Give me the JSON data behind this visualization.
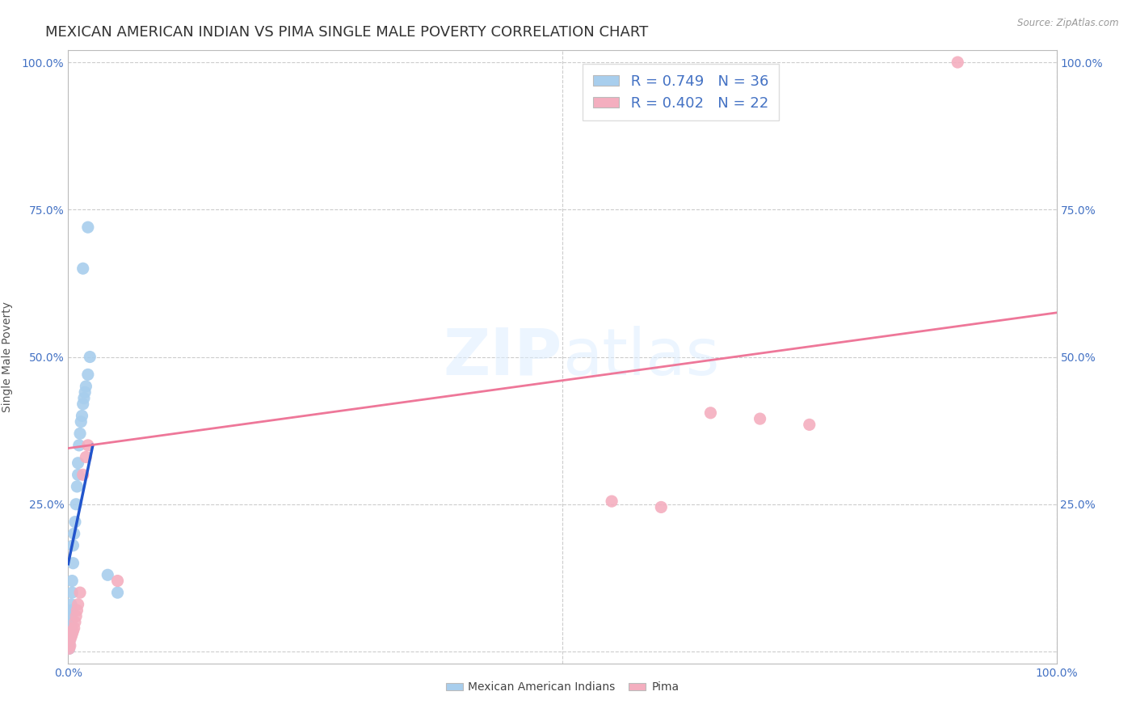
{
  "title": "MEXICAN AMERICAN INDIAN VS PIMA SINGLE MALE POVERTY CORRELATION CHART",
  "source": "Source: ZipAtlas.com",
  "ylabel": "Single Male Poverty",
  "legend_label1": "Mexican American Indians",
  "legend_label2": "Pima",
  "r1": 0.749,
  "n1": 36,
  "r2": 0.402,
  "n2": 22,
  "watermark": "ZIPatlas",
  "blue_color": "#A8CEED",
  "pink_color": "#F4AEBF",
  "blue_line_color": "#2255CC",
  "pink_line_color": "#EE7799",
  "blue_scatter": [
    [
      0.001,
      0.005
    ],
    [
      0.001,
      0.01
    ],
    [
      0.001,
      0.015
    ],
    [
      0.001,
      0.02
    ],
    [
      0.002,
      0.025
    ],
    [
      0.002,
      0.03
    ],
    [
      0.002,
      0.035
    ],
    [
      0.002,
      0.04
    ],
    [
      0.003,
      0.05
    ],
    [
      0.003,
      0.06
    ],
    [
      0.003,
      0.07
    ],
    [
      0.003,
      0.08
    ],
    [
      0.004,
      0.1
    ],
    [
      0.004,
      0.12
    ],
    [
      0.005,
      0.15
    ],
    [
      0.005,
      0.18
    ],
    [
      0.006,
      0.2
    ],
    [
      0.007,
      0.22
    ],
    [
      0.008,
      0.25
    ],
    [
      0.009,
      0.28
    ],
    [
      0.01,
      0.3
    ],
    [
      0.01,
      0.32
    ],
    [
      0.011,
      0.35
    ],
    [
      0.012,
      0.37
    ],
    [
      0.013,
      0.39
    ],
    [
      0.014,
      0.4
    ],
    [
      0.015,
      0.42
    ],
    [
      0.016,
      0.43
    ],
    [
      0.017,
      0.44
    ],
    [
      0.018,
      0.45
    ],
    [
      0.02,
      0.47
    ],
    [
      0.022,
      0.5
    ],
    [
      0.015,
      0.65
    ],
    [
      0.02,
      0.72
    ],
    [
      0.04,
      0.13
    ],
    [
      0.05,
      0.1
    ]
  ],
  "pink_scatter": [
    [
      0.001,
      0.005
    ],
    [
      0.002,
      0.01
    ],
    [
      0.002,
      0.02
    ],
    [
      0.003,
      0.025
    ],
    [
      0.004,
      0.03
    ],
    [
      0.005,
      0.035
    ],
    [
      0.006,
      0.04
    ],
    [
      0.007,
      0.05
    ],
    [
      0.008,
      0.06
    ],
    [
      0.009,
      0.07
    ],
    [
      0.01,
      0.08
    ],
    [
      0.012,
      0.1
    ],
    [
      0.015,
      0.3
    ],
    [
      0.018,
      0.33
    ],
    [
      0.02,
      0.35
    ],
    [
      0.05,
      0.12
    ],
    [
      0.55,
      0.255
    ],
    [
      0.6,
      0.245
    ],
    [
      0.65,
      0.405
    ],
    [
      0.7,
      0.395
    ],
    [
      0.75,
      0.385
    ],
    [
      0.9,
      1.0
    ]
  ],
  "xlim": [
    0.0,
    1.0
  ],
  "ylim": [
    -0.02,
    1.02
  ],
  "yticks": [
    0.0,
    0.25,
    0.5,
    0.75,
    1.0
  ],
  "ytick_labels": [
    "",
    "25.0%",
    "50.0%",
    "75.0%",
    "100.0%"
  ],
  "grid_color": "#CCCCCC",
  "bg_color": "#FFFFFF",
  "title_color": "#333333",
  "axis_label_color": "#4472C4",
  "title_fontsize": 13,
  "label_fontsize": 10,
  "blue_line_x_start": 0.0,
  "blue_line_x_end": 0.025,
  "pink_line_x_start": 0.0,
  "pink_line_x_end": 1.0,
  "pink_line_y_start": 0.345,
  "pink_line_y_end": 0.575
}
